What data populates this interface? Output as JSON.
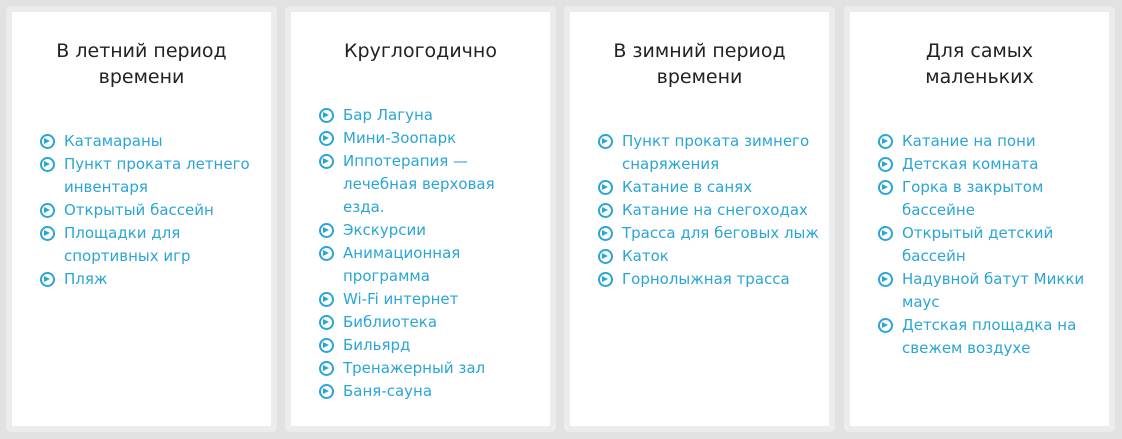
{
  "accent_color": "#2aa5d6",
  "columns": [
    {
      "title": "В летний период времени",
      "items": [
        "Катамараны",
        "Пункт проката летнего инвентаря",
        "Открытый бассейн",
        "Площадки для спортивных игр",
        "Пляж"
      ]
    },
    {
      "title": "Круглогодично",
      "items": [
        "Бар Лагуна",
        "Мини-Зоопарк",
        "Иппотерапия — лечебная верховая езда.",
        "Экскурсии",
        "Анимационная программа",
        "Wi-Fi интернет",
        "Библиотека",
        "Бильярд",
        "Тренажерный зал",
        "Баня-сауна"
      ]
    },
    {
      "title": "В зимний период времени",
      "items": [
        "Пункт проката зимнего снаряжения",
        "Катание в санях",
        "Катание на снегоходах",
        "Трасса для беговых лыж",
        "Каток",
        "Горнолыжная трасса"
      ]
    },
    {
      "title": "Для самых маленьких",
      "items": [
        "Катание на пони",
        "Детская комната",
        "Горка в закрытом бассейне",
        "Открытый детский бассейн",
        "Надувной батут Микки маус",
        "Детская площадка на свежем воздухе"
      ]
    }
  ]
}
